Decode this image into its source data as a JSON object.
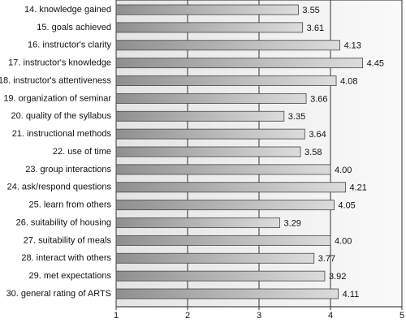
{
  "chart_data": {
    "type": "bar",
    "orientation": "horizontal",
    "categories": [
      "14. knowledge gained",
      "15. goals achieved",
      "16. instructor's clarity",
      "17. instructor's knowledge",
      "18. instructor's attentiveness",
      "19. organization of seminar",
      "20. quality of the syllabus",
      "21. instructional methods",
      "22. use of time",
      "23. group interactions",
      "24. ask/respond questions",
      "25. learn from others",
      "26. suitability of housing",
      "27. suitability of meals",
      "28. interact with others",
      "29. met expectations",
      "30. general rating of ARTS"
    ],
    "values": [
      3.55,
      3.61,
      4.13,
      4.45,
      4.08,
      3.66,
      3.35,
      3.64,
      3.58,
      4.0,
      4.21,
      4.05,
      3.29,
      4.0,
      3.77,
      3.92,
      4.11
    ],
    "value_labels": [
      "3.55",
      "3.61",
      "4.13",
      "4.45",
      "4.08",
      "3.66",
      "3.35",
      "3.64",
      "3.58",
      "4.00",
      "4.21",
      "4.05",
      "3.29",
      "4.00",
      "3.77",
      "3.92",
      "4.11"
    ],
    "color": "#b5b5b5",
    "xlim": [
      1,
      5
    ],
    "xticks": [
      1,
      2,
      3,
      4,
      5
    ],
    "grid": true
  }
}
